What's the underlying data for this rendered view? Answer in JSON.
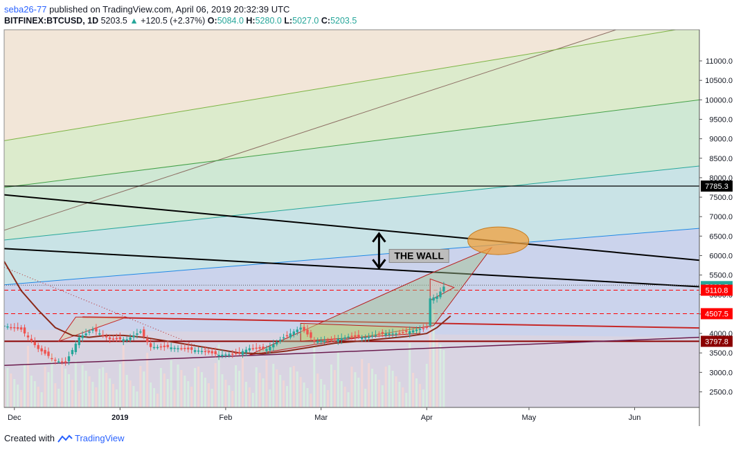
{
  "header": {
    "user": "seba26-77",
    "published": "published on TradingView.com, April 06, 2019 20:32:39 UTC",
    "symbol": "BITFINEX:BTCUSD, 1D",
    "last": "5203.5",
    "change": "+120.5 (+2.37%)",
    "open_label": "O:",
    "open": "5084.0",
    "high_label": "H:",
    "high": "5280.0",
    "low_label": "L:",
    "low": "5027.0",
    "close_label": "C:",
    "close": "5203.5"
  },
  "footer": {
    "created_with": "Created with",
    "brand": "TradingView"
  },
  "colors": {
    "up": "#26a69a",
    "down": "#ef5350",
    "black_line": "#000000",
    "red_line": "#c62828",
    "ma_line": "#8b2a1a",
    "price_tag": "#26a69a",
    "support_tag": "#ff0000",
    "dark_tag": "#8b0000"
  },
  "chart_data": {
    "type": "line",
    "title": "",
    "xlabel": "",
    "ylabel": "",
    "ylim": [
      2100,
      11800
    ],
    "y_ticks": [
      "11000.0",
      "10500.0",
      "10000.0",
      "9500.0",
      "9000.0",
      "8500.0",
      "8000.0",
      "7500.0",
      "7000.0",
      "6500.0",
      "6000.0",
      "5500.0",
      "5000.0",
      "4500.0",
      "4000.0",
      "3500.0",
      "3000.0",
      "2500.0"
    ],
    "x_ticks": [
      "Dec",
      "2019",
      "Feb",
      "Mar",
      "Apr",
      "May",
      "Jun"
    ],
    "x_tick_dates": [
      "2018-12-01",
      "2019-01-01",
      "2019-02-01",
      "2019-03-01",
      "2019-04-01",
      "2019-05-01",
      "2019-06-01"
    ],
    "x_range": [
      "2018-11-28",
      "2019-06-20"
    ],
    "price_tags": [
      {
        "label": "7785.3",
        "value": 7785.3,
        "color": "#000000"
      },
      {
        "label": "5203.5",
        "value": 5203.5,
        "color": "#26a69a"
      },
      {
        "label": "5110.8",
        "value": 5110.8,
        "color": "#ff0000"
      },
      {
        "label": "4507.5",
        "value": 4507.5,
        "color": "#ff0000"
      },
      {
        "label": "3797.8",
        "value": 3797.8,
        "color": "#8b0000"
      }
    ],
    "annotation": "THE WALL",
    "series": [
      {
        "name": "",
        "type": "close",
        "x": [
          "2018-11-28",
          "2018-12-03",
          "2018-12-08",
          "2018-12-13",
          "2018-12-16",
          "2018-12-20",
          "2018-12-24",
          "2018-12-29",
          "2019-01-03",
          "2019-01-07",
          "2019-01-10",
          "2019-01-15",
          "2019-01-20",
          "2019-01-25",
          "2019-01-30",
          "2019-02-04",
          "2019-02-08",
          "2019-02-13",
          "2019-02-18",
          "2019-02-23",
          "2019-02-27",
          "2019-03-04",
          "2019-03-09",
          "2019-03-14",
          "2019-03-19",
          "2019-03-24",
          "2019-03-29",
          "2019-04-01",
          "2019-04-02",
          "2019-04-04",
          "2019-04-06"
        ],
        "values": [
          4200,
          4100,
          3600,
          3300,
          3250,
          3900,
          4100,
          3850,
          3850,
          4050,
          3650,
          3650,
          3600,
          3550,
          3450,
          3470,
          3620,
          3600,
          3900,
          4150,
          3800,
          3820,
          3920,
          3900,
          4000,
          4000,
          4100,
          4150,
          4900,
          4950,
          5203.5
        ]
      },
      {
        "name": "",
        "type": "moving-average",
        "x": [
          "2018-11-28",
          "2018-12-03",
          "2018-12-08",
          "2018-12-13",
          "2018-12-18",
          "2018-12-23",
          "2018-12-28",
          "2019-01-02",
          "2019-01-08",
          "2019-01-15",
          "2019-01-22",
          "2019-01-29",
          "2019-02-05",
          "2019-02-12",
          "2019-02-19",
          "2019-02-26",
          "2019-03-05",
          "2019-03-12",
          "2019-03-19",
          "2019-03-26",
          "2019-04-01",
          "2019-04-04",
          "2019-04-08"
        ],
        "values": [
          5850,
          5100,
          4600,
          4150,
          3950,
          3900,
          3950,
          3950,
          3900,
          3800,
          3700,
          3600,
          3500,
          3480,
          3550,
          3650,
          3750,
          3800,
          3860,
          3920,
          4000,
          4150,
          4450
        ]
      }
    ]
  }
}
